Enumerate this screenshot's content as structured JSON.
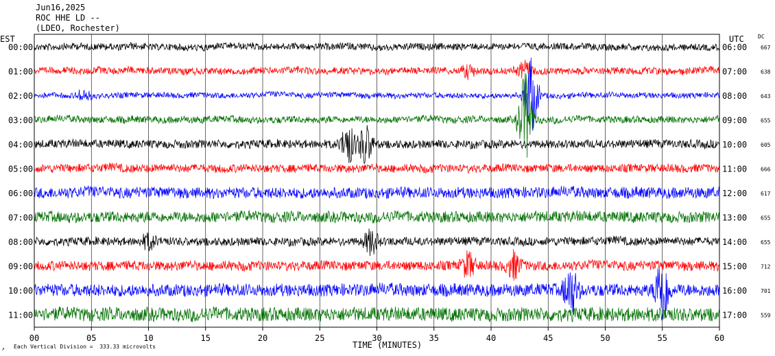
{
  "header": {
    "date": "Jun16,2025",
    "station": "ROC HHE LD --",
    "network": "(LDEO, Rochester)"
  },
  "left_axis_label": "EST",
  "right_axis_label": "UTC",
  "dc_label": "DC",
  "footer_note": "Each Vertical Division =  333.33 microvolts",
  "chart_data": {
    "type": "line",
    "title": "ROC HHE LD --",
    "xlabel": "TIME (MINUTES)",
    "xlim": [
      0,
      60
    ],
    "x_ticks": [
      "00",
      "05",
      "10",
      "15",
      "20",
      "25",
      "30",
      "35",
      "40",
      "45",
      "50",
      "55",
      "60"
    ],
    "x_tick_values": [
      0,
      5,
      10,
      15,
      20,
      25,
      30,
      35,
      40,
      45,
      50,
      55,
      60
    ],
    "grid": "vertical-every-5-min",
    "traces": [
      {
        "est": "00:00",
        "utc": "06:00",
        "dc": "667",
        "color": "#000000",
        "amp": 5,
        "events": []
      },
      {
        "est": "01:00",
        "utc": "07:00",
        "dc": "638",
        "color": "#ff0000",
        "amp": 5,
        "events": [
          {
            "t": 38,
            "h": 8
          },
          {
            "t": 43,
            "h": 12
          }
        ]
      },
      {
        "est": "02:00",
        "utc": "08:00",
        "dc": "643",
        "color": "#0000ff",
        "amp": 4,
        "events": [
          {
            "t": 4.3,
            "h": 8
          },
          {
            "t": 43.5,
            "h": 60
          }
        ]
      },
      {
        "est": "03:00",
        "utc": "09:00",
        "dc": "655",
        "color": "#007000",
        "amp": 5,
        "events": [
          {
            "t": 43,
            "h": 70
          }
        ]
      },
      {
        "est": "04:00",
        "utc": "10:00",
        "dc": "605",
        "color": "#000000",
        "amp": 6,
        "events": [
          {
            "t": 27.5,
            "h": 30
          },
          {
            "t": 29,
            "h": 30
          }
        ]
      },
      {
        "est": "05:00",
        "utc": "11:00",
        "dc": "666",
        "color": "#ff0000",
        "amp": 6,
        "events": []
      },
      {
        "est": "06:00",
        "utc": "12:00",
        "dc": "617",
        "color": "#0000ff",
        "amp": 8,
        "events": []
      },
      {
        "est": "07:00",
        "utc": "13:00",
        "dc": "655",
        "color": "#007000",
        "amp": 8,
        "events": []
      },
      {
        "est": "08:00",
        "utc": "14:00",
        "dc": "655",
        "color": "#000000",
        "amp": 6,
        "events": [
          {
            "t": 10,
            "h": 10
          },
          {
            "t": 29.5,
            "h": 18
          }
        ]
      },
      {
        "est": "09:00",
        "utc": "15:00",
        "dc": "712",
        "color": "#ff0000",
        "amp": 7,
        "events": [
          {
            "t": 38,
            "h": 18
          },
          {
            "t": 42,
            "h": 18
          }
        ]
      },
      {
        "est": "10:00",
        "utc": "16:00",
        "dc": "701",
        "color": "#0000ff",
        "amp": 9,
        "events": [
          {
            "t": 47,
            "h": 35
          },
          {
            "t": 55,
            "h": 55
          }
        ]
      },
      {
        "est": "11:00",
        "utc": "17:00",
        "dc": "559",
        "color": "#007000",
        "amp": 10,
        "events": []
      }
    ]
  }
}
